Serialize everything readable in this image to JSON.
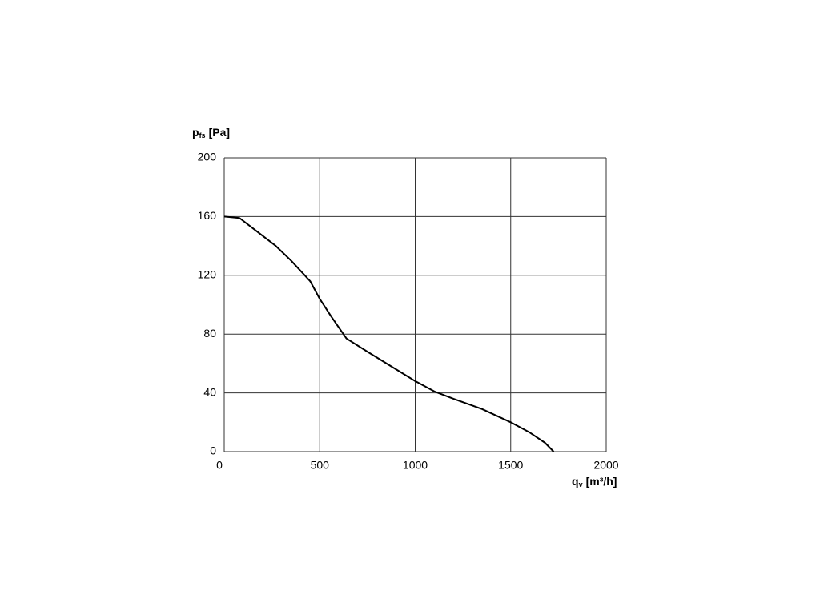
{
  "chart_data": {
    "type": "line",
    "ylabel": {
      "text": "p",
      "sub": "fs",
      "unit": "[Pa]"
    },
    "xlabel": {
      "text": "q",
      "sub": "v",
      "unit": "[m³/h]"
    },
    "x": [
      0,
      80,
      150,
      270,
      350,
      450,
      500,
      560,
      640,
      750,
      900,
      1000,
      1100,
      1200,
      1350,
      1500,
      1600,
      1680,
      1725
    ],
    "series": [
      {
        "color": "#000000",
        "values": [
          160,
          159,
          152,
          140,
          130,
          116,
          104,
          92,
          77,
          68,
          56,
          48,
          41,
          36,
          29,
          20,
          13,
          6,
          0
        ]
      }
    ],
    "xlim": [
      0,
      2000
    ],
    "xticks": [
      0,
      500,
      1000,
      1500,
      2000
    ],
    "ylim": [
      0,
      200
    ],
    "yticks": [
      0,
      40,
      80,
      120,
      160,
      200
    ],
    "grid": true
  }
}
